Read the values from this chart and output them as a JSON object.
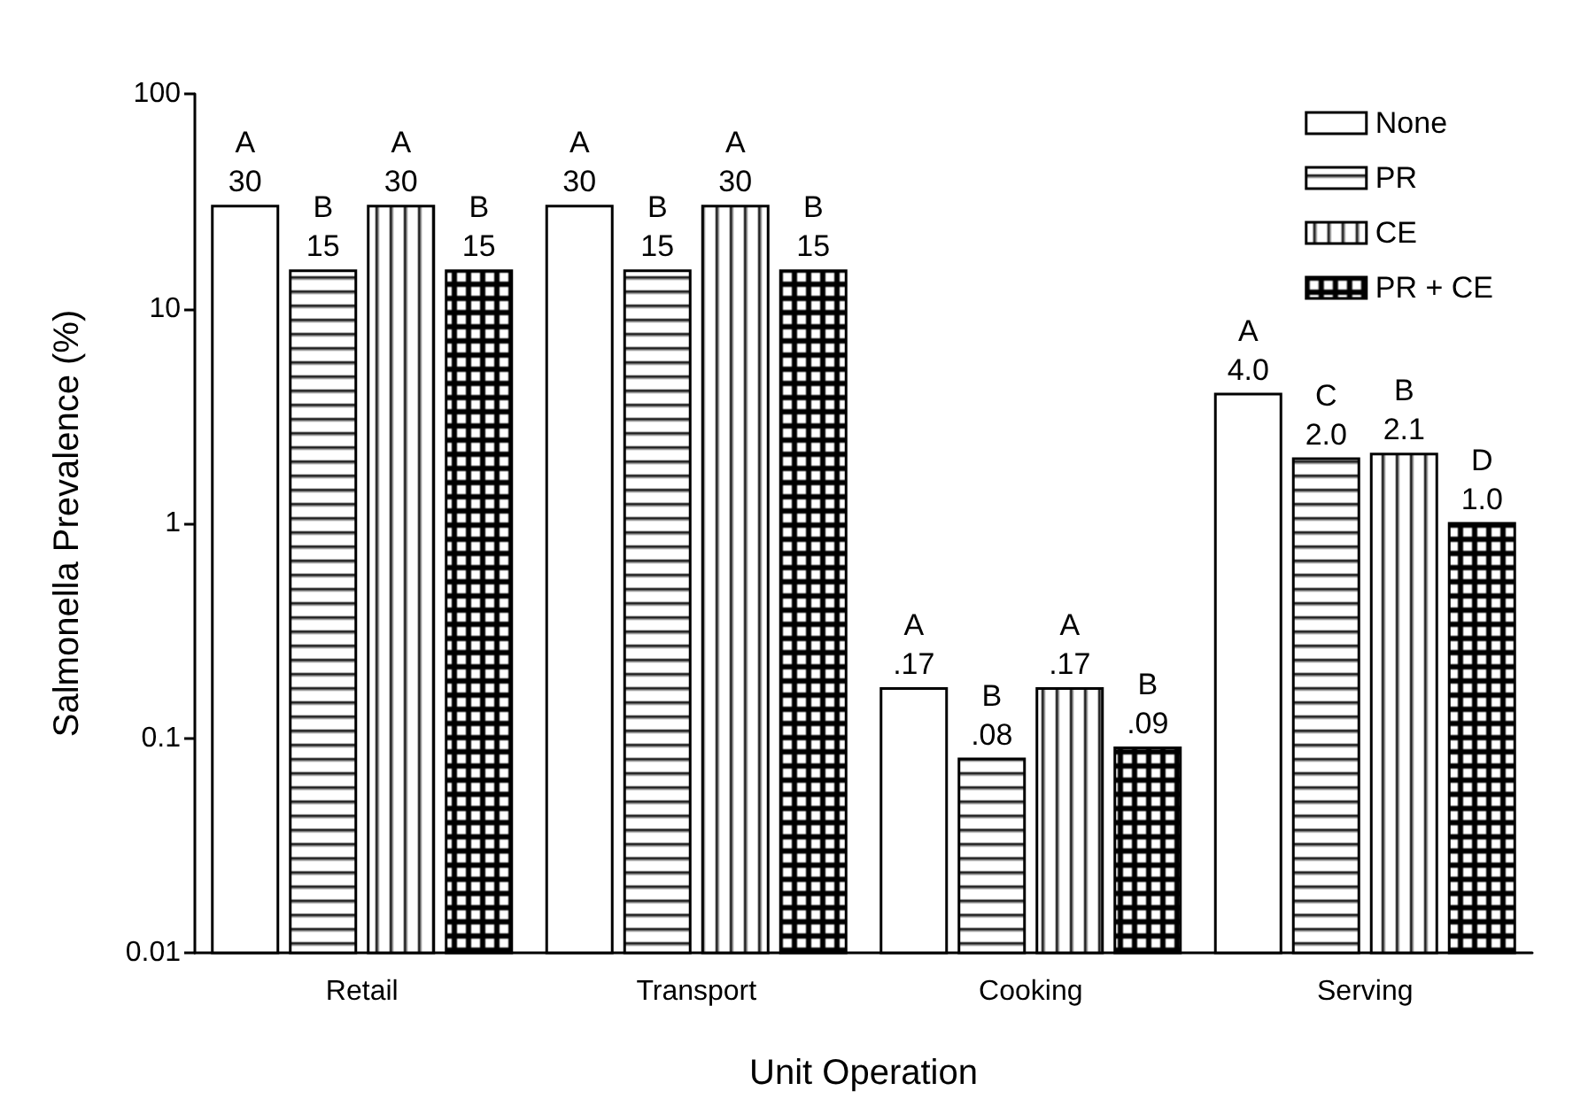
{
  "chart_data": {
    "type": "bar",
    "categories": [
      "Retail",
      "Transport",
      "Cooking",
      "Serving"
    ],
    "series": [
      {
        "name": "None",
        "color": "#ffffff",
        "values": [
          30,
          30,
          0.17,
          4.0
        ],
        "value_labels": [
          "A\n30",
          "A\n30",
          "A\n.17",
          "A\n4.0"
        ]
      },
      {
        "name": "PR",
        "color": "#000000",
        "values": [
          15,
          15,
          0.08,
          2.0
        ],
        "value_labels": [
          "B\n15",
          "B\n15",
          "B\n.08",
          "C\n2.0"
        ]
      },
      {
        "name": "CE",
        "color": "#000000",
        "values": [
          30,
          30,
          0.17,
          2.1
        ],
        "value_labels": [
          "A\n30",
          "A\n30",
          "A\n.17",
          "B\n2.1"
        ]
      },
      {
        "name": "PR + CE",
        "color": "#000000",
        "values": [
          15,
          15,
          0.09,
          1.0
        ],
        "value_labels": [
          "B\n15",
          "B\n15",
          "B\n.09",
          "D\n1.0"
        ]
      }
    ],
    "xlabel": "Unit Operation",
    "ylabel": "Salmonella Prevalence (%)",
    "log": "y",
    "ylim": [
      0.01,
      100
    ],
    "yticks": [
      0.01,
      0.1,
      1,
      10,
      100
    ],
    "legend": "top right",
    "grid": false
  }
}
